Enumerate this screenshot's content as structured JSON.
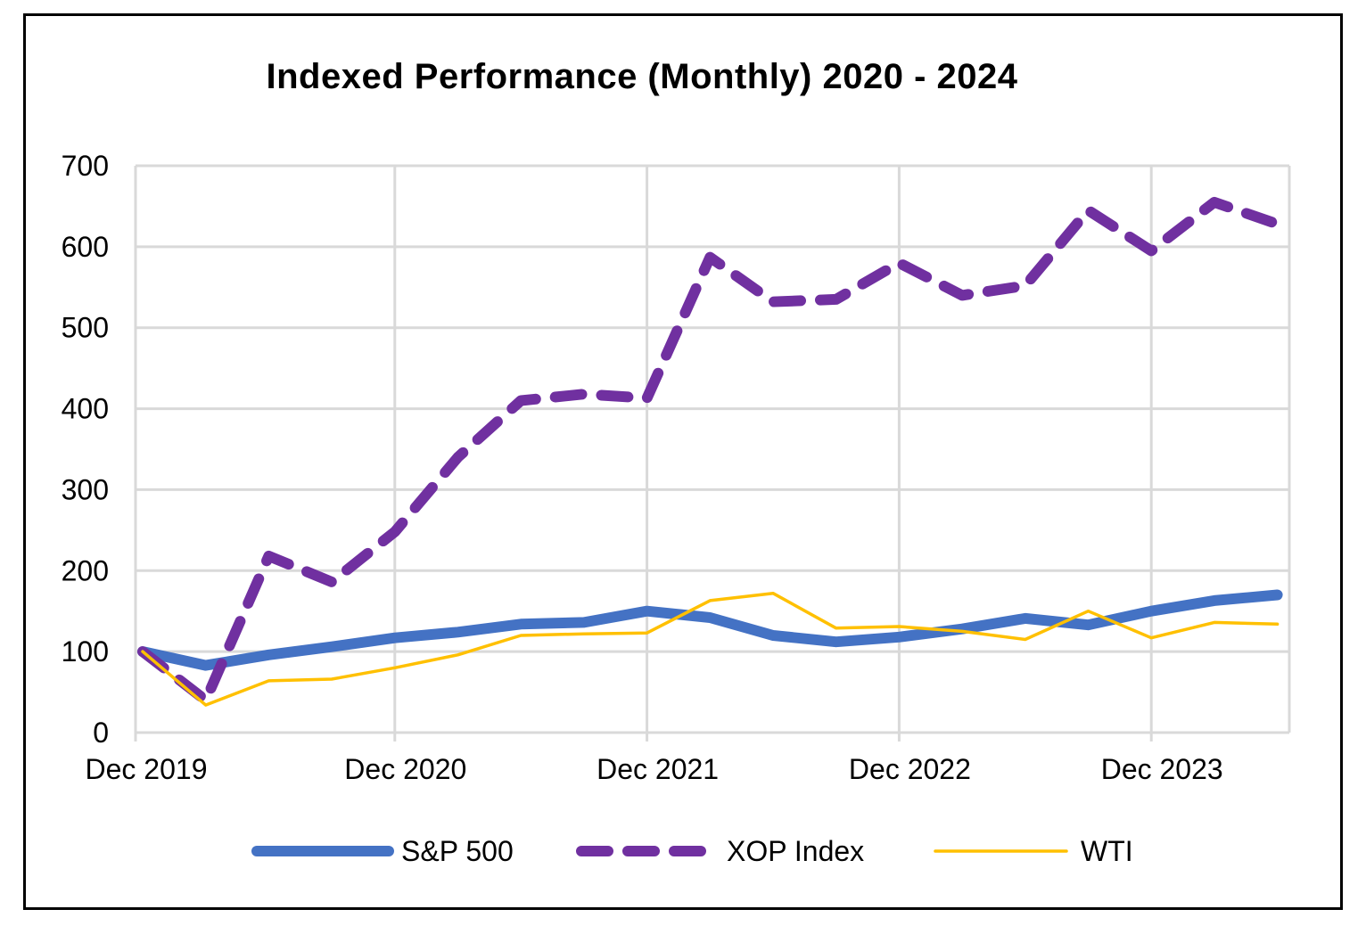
{
  "chart_data": {
    "type": "line",
    "title": "Indexed Performance (Monthly) 2020 - 2024",
    "xlabel": "",
    "ylabel": "",
    "ylim": [
      0,
      700
    ],
    "yticks": [
      "0",
      "100",
      "200",
      "300",
      "400",
      "500",
      "600",
      "700"
    ],
    "x_tick_labels": [
      "Dec 2019",
      "Dec 2020",
      "Dec 2021",
      "Dec 2022",
      "Dec 2023"
    ],
    "x": [
      "Dec 2019",
      "Mar 2020",
      "Jun 2020",
      "Sep 2020",
      "Dec 2020",
      "Mar 2021",
      "Jun 2021",
      "Sep 2021",
      "Dec 2021",
      "Mar 2022",
      "Jun 2022",
      "Sep 2022",
      "Dec 2022",
      "Mar 2023",
      "Jun 2023",
      "Sep 2023",
      "Dec 2023",
      "Mar 2024",
      "Jun 2024"
    ],
    "grid": true,
    "legend_position": "bottom",
    "series": [
      {
        "name": "S&P 500",
        "color": "#4472C4",
        "style": "solid-thick",
        "values": [
          100,
          83,
          96,
          106,
          117,
          124,
          134,
          136,
          150,
          142,
          120,
          112,
          118,
          128,
          141,
          133,
          150,
          163,
          170
        ]
      },
      {
        "name": "XOP Index",
        "color": "#7030A0",
        "style": "dashed-thick",
        "values": [
          100,
          40,
          218,
          186,
          248,
          340,
          410,
          418,
          413,
          587,
          532,
          535,
          580,
          540,
          552,
          645,
          595,
          655,
          628
        ]
      },
      {
        "name": "WTI",
        "color": "#FFC000",
        "style": "solid-thin",
        "values": [
          100,
          34,
          64,
          66,
          80,
          96,
          120,
          122,
          123,
          163,
          172,
          129,
          131,
          125,
          115,
          150,
          117,
          136,
          134
        ]
      }
    ]
  }
}
